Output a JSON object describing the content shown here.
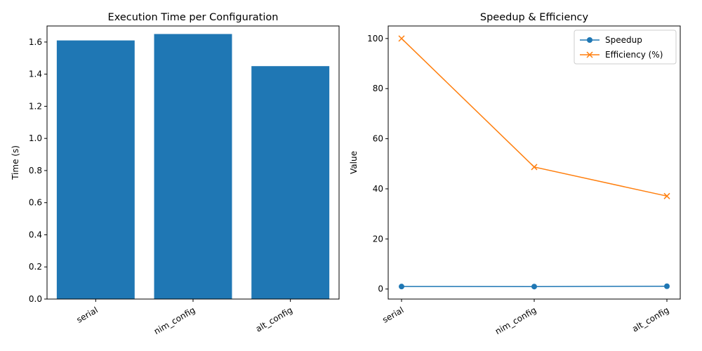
{
  "chart_data": [
    {
      "type": "bar",
      "title": "Execution Time per Configuration",
      "xlabel": "",
      "ylabel": "Time (s)",
      "categories": [
        "serial",
        "nim_config",
        "alt_config"
      ],
      "values": [
        1.61,
        1.65,
        1.45
      ],
      "ylim": [
        0,
        1.7
      ],
      "yticks": [
        0.0,
        0.2,
        0.4,
        0.6,
        0.8,
        1.0,
        1.2,
        1.4,
        1.6
      ],
      "ytick_labels": [
        "0.0",
        "0.2",
        "0.4",
        "0.6",
        "0.8",
        "1.0",
        "1.2",
        "1.4",
        "1.6"
      ],
      "color": "#1f77b4",
      "grid": false
    },
    {
      "type": "line",
      "title": "Speedup & Efficiency",
      "xlabel": "",
      "ylabel": "Value",
      "categories": [
        "serial",
        "nim_config",
        "alt_config"
      ],
      "series": [
        {
          "name": "Speedup",
          "values": [
            1.0,
            0.98,
            1.11
          ],
          "color": "#1f77b4",
          "marker": "circle"
        },
        {
          "name": "Efficiency (%)",
          "values": [
            100,
            48.7,
            37.1
          ],
          "color": "#ff7f0e",
          "marker": "x"
        }
      ],
      "ylim": [
        -4,
        105
      ],
      "yticks": [
        0,
        20,
        40,
        60,
        80,
        100
      ],
      "ytick_labels": [
        "0",
        "20",
        "40",
        "60",
        "80",
        "100"
      ],
      "legend": "top-right",
      "grid": false
    }
  ]
}
